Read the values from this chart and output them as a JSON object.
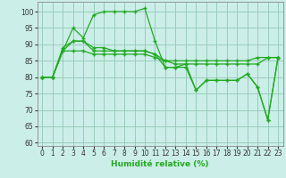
{
  "xlabel": "Humidité relative (%)",
  "bg_color": "#cceee8",
  "grid_color": "#99ccbb",
  "line_color": "#22aa22",
  "xlim": [
    -0.5,
    23.5
  ],
  "ylim": [
    59,
    103
  ],
  "yticks": [
    60,
    65,
    70,
    75,
    80,
    85,
    90,
    95,
    100
  ],
  "xticks": [
    0,
    1,
    2,
    3,
    4,
    5,
    6,
    7,
    8,
    9,
    10,
    11,
    12,
    13,
    14,
    15,
    16,
    17,
    18,
    19,
    20,
    21,
    22,
    23
  ],
  "series": [
    [
      80,
      80,
      88,
      95,
      92,
      99,
      100,
      100,
      100,
      100,
      101,
      91,
      83,
      83,
      84,
      76,
      79,
      79,
      79,
      79,
      81,
      77,
      67,
      86
    ],
    [
      80,
      80,
      88,
      88,
      88,
      87,
      87,
      87,
      87,
      87,
      87,
      86,
      85,
      85,
      85,
      85,
      85,
      85,
      85,
      85,
      85,
      86,
      86,
      86
    ],
    [
      80,
      80,
      89,
      91,
      91,
      89,
      89,
      88,
      88,
      88,
      88,
      87,
      85,
      84,
      84,
      84,
      84,
      84,
      84,
      84,
      84,
      84,
      86,
      86
    ],
    [
      80,
      80,
      88,
      91,
      91,
      88,
      88,
      88,
      88,
      88,
      88,
      87,
      83,
      83,
      83,
      76,
      79,
      79,
      79,
      79,
      81,
      77,
      67,
      86
    ]
  ]
}
